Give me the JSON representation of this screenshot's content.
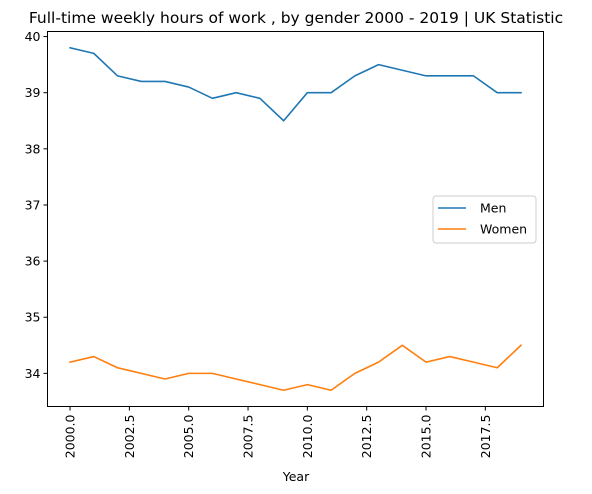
{
  "chart_data": {
    "type": "line",
    "title": "Full-time weekly hours of work , by gender 2000 - 2019 | UK Statistic",
    "xlabel": "Year",
    "ylabel": "",
    "x": [
      2000,
      2001,
      2002,
      2003,
      2004,
      2005,
      2006,
      2007,
      2008,
      2009,
      2010,
      2011,
      2012,
      2013,
      2014,
      2015,
      2016,
      2017,
      2018,
      2019
    ],
    "xlim": [
      1999.05,
      2019.95
    ],
    "ylim": [
      33.41,
      40.09
    ],
    "xticks": [
      2000,
      2002.5,
      2005,
      2007.5,
      2010,
      2012.5,
      2015,
      2017.5
    ],
    "xtick_labels": [
      "2000.0",
      "2002.5",
      "2005.0",
      "2007.5",
      "2010.0",
      "2012.5",
      "2015.0",
      "2017.5"
    ],
    "yticks": [
      34,
      35,
      36,
      37,
      38,
      39,
      40
    ],
    "ytick_labels": [
      "34",
      "35",
      "36",
      "37",
      "38",
      "39",
      "40"
    ],
    "grid": false,
    "legend_position": "center-right",
    "series": [
      {
        "name": "Men",
        "color": "#1f77b4",
        "values": [
          39.8,
          39.7,
          39.3,
          39.2,
          39.2,
          39.1,
          38.9,
          39.0,
          38.9,
          38.5,
          39.0,
          39.0,
          39.3,
          39.5,
          39.4,
          39.3,
          39.3,
          39.3,
          39.0,
          39.0
        ]
      },
      {
        "name": "Women",
        "color": "#ff7f0e",
        "values": [
          34.2,
          34.3,
          34.1,
          34.0,
          33.9,
          34.0,
          34.0,
          33.9,
          33.8,
          33.7,
          33.8,
          33.7,
          34.0,
          34.2,
          34.5,
          34.2,
          34.3,
          34.2,
          34.1,
          34.5
        ]
      }
    ]
  }
}
